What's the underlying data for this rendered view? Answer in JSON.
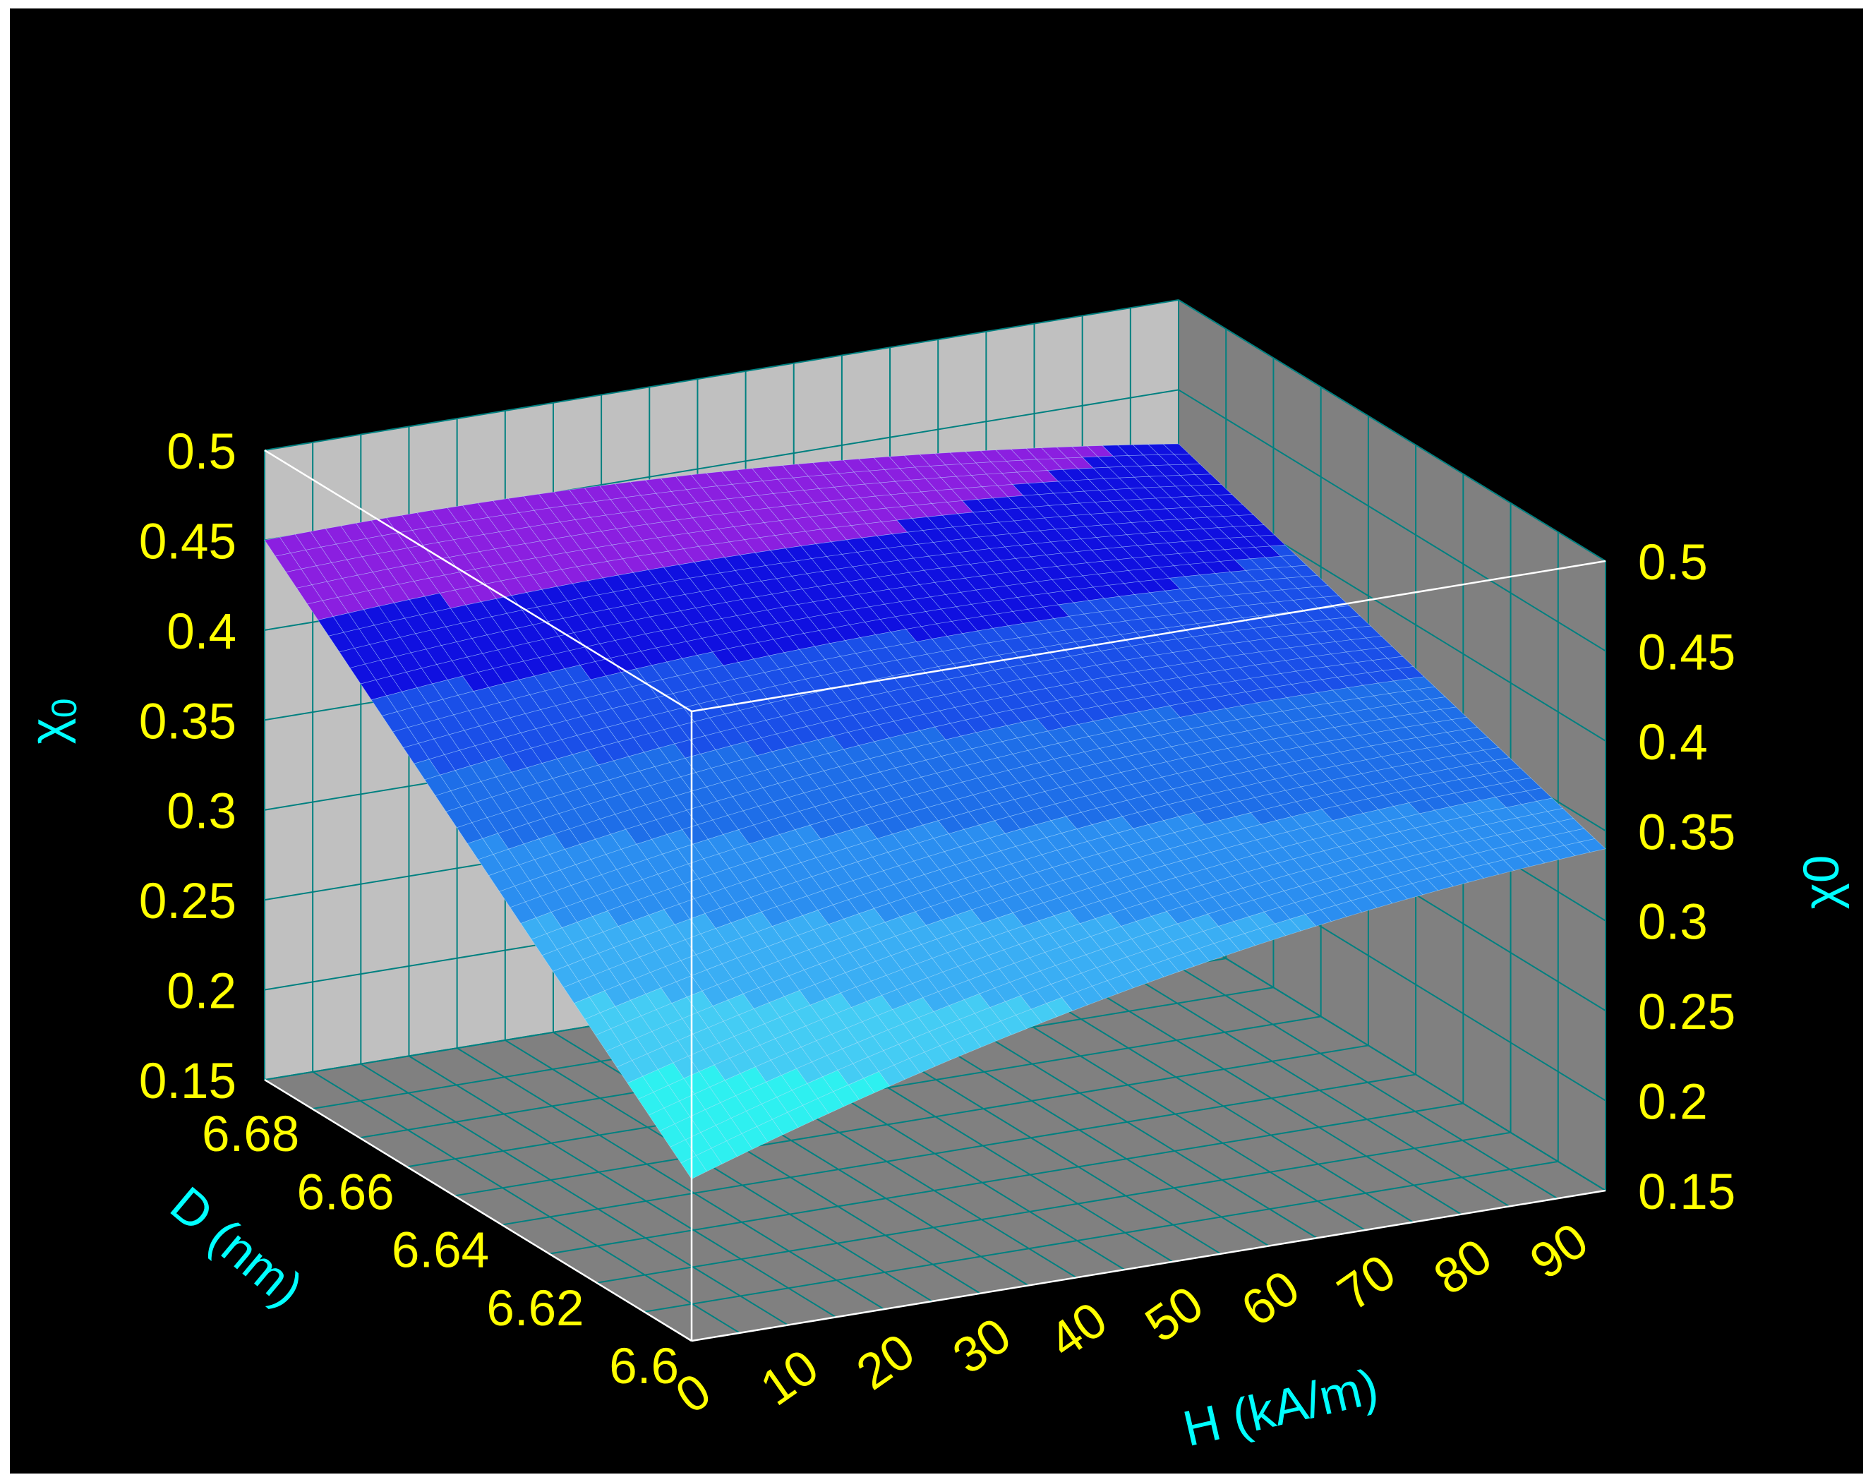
{
  "chart_data": {
    "type": "surface3d",
    "title": "",
    "xlabel": "H (kA/m)",
    "ylabel": "D (nm)",
    "zlabel": "χ₀",
    "zlabel_symbol": "χ",
    "zlabel_sub": "0",
    "zlabel_right": "χ0",
    "xlim": [
      0,
      95
    ],
    "ylim": [
      6.6,
      6.69
    ],
    "zlim": [
      0.15,
      0.5
    ],
    "xticks": [
      0,
      10,
      20,
      30,
      40,
      50,
      60,
      70,
      80,
      90
    ],
    "xtick_labels": [
      "0",
      "10",
      "20",
      "30",
      "40",
      "50",
      "60",
      "70",
      "80",
      "90"
    ],
    "yticks": [
      6.6,
      6.62,
      6.64,
      6.66,
      6.68
    ],
    "ytick_labels": [
      "6.6",
      "6.62",
      "6.64",
      "6.66",
      "6.68"
    ],
    "zticks": [
      0.15,
      0.2,
      0.25,
      0.3,
      0.35,
      0.4,
      0.45,
      0.5
    ],
    "ztick_labels": [
      "0.15",
      "0.2",
      "0.25",
      "0.3",
      "0.35",
      "0.4",
      "0.45",
      "0.5"
    ],
    "grid": true,
    "surface": {
      "corner_values": [
        {
          "H": 0,
          "D": 6.6,
          "chi0": 0.24
        },
        {
          "H": 95,
          "D": 6.6,
          "chi0": 0.34
        },
        {
          "H": 0,
          "D": 6.69,
          "chi0": 0.45
        },
        {
          "H": 95,
          "D": 6.69,
          "chi0": 0.42
        }
      ],
      "colormap": [
        "#8b1fe0",
        "#1010e0",
        "#1a4fe8",
        "#1e6ee8",
        "#2b8ef0",
        "#3aaef4",
        "#44ccf4",
        "#2ef0f0"
      ],
      "color_range": [
        0.25,
        0.45
      ]
    },
    "colors": {
      "background": "#000000",
      "back_wall": "#c0c0c0",
      "side_wall": "#808080",
      "floor": "#808080",
      "grid_line": "#008080",
      "box_edge": "#ffffff",
      "tick_label": "#ffff00",
      "axis_title": "#00ffff",
      "mesh_line": "#c0e8ff"
    }
  }
}
